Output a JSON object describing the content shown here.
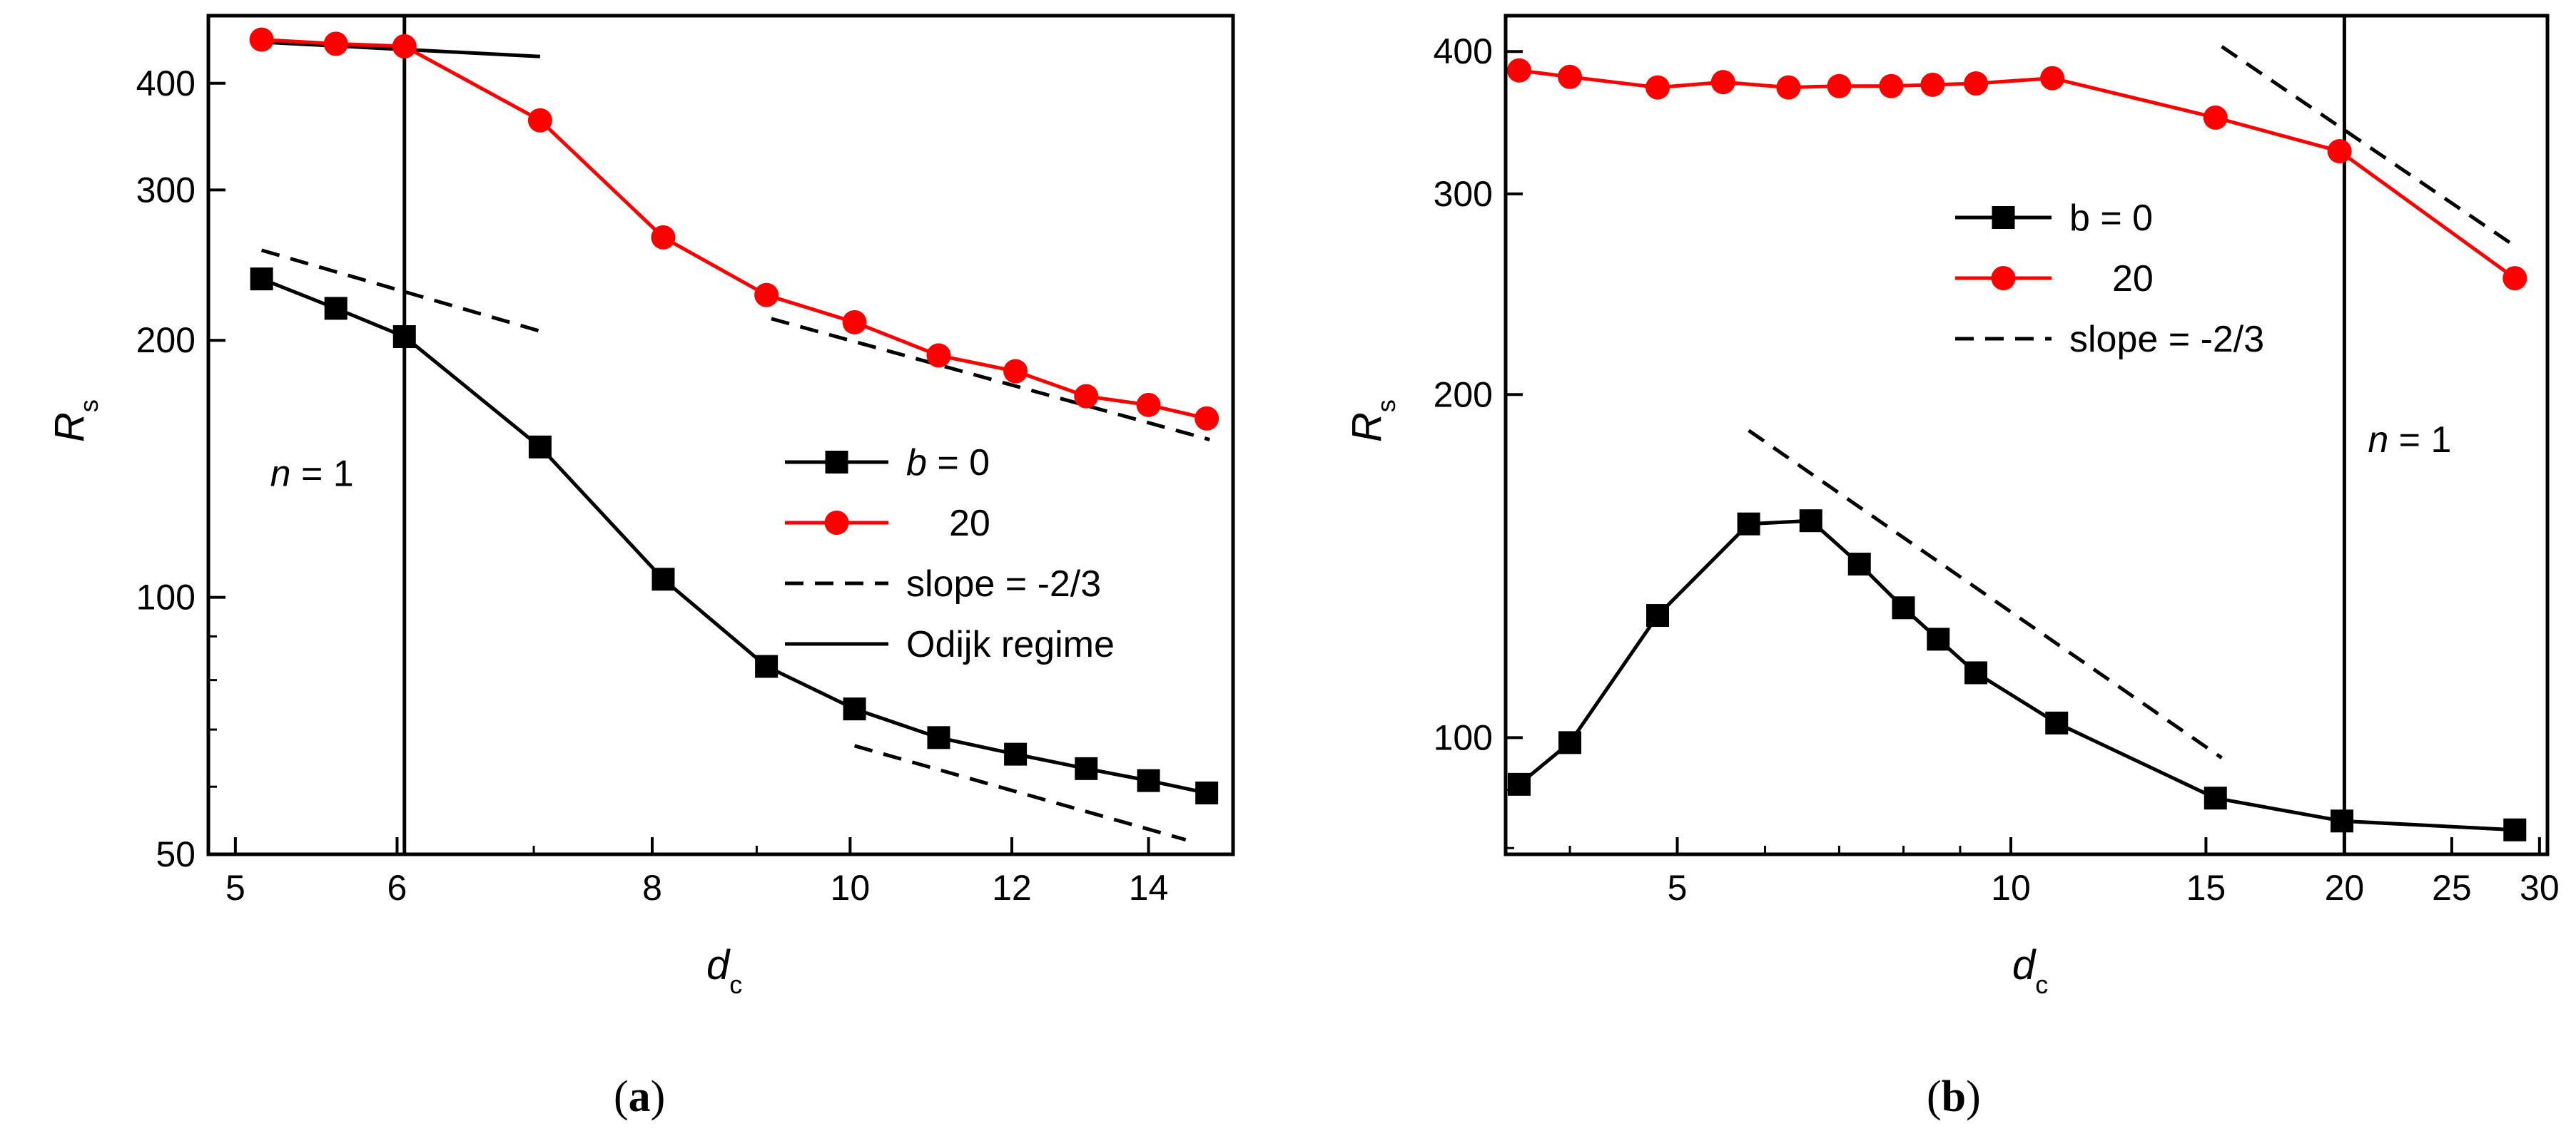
{
  "chart_data": [
    {
      "id": "a",
      "type": "line",
      "panel_label": "(a)",
      "panel_letter": "a",
      "xscale": "log",
      "yscale": "log",
      "xlim": [
        4.85,
        15.4
      ],
      "ylim": [
        50,
        480
      ],
      "xticks": [
        5,
        6,
        8,
        10,
        12,
        14
      ],
      "yticks": [
        50,
        100,
        200,
        300,
        400
      ],
      "xlabel": "d",
      "xlabel_sub": "c",
      "ylabel": "R",
      "ylabel_sub": "s",
      "annotation": {
        "italic": "n",
        "rest": " = 1",
        "x": 5.2,
        "y": 135
      },
      "series": [
        {
          "name": "b = 0",
          "color": "#000000",
          "marker": "square",
          "x": [
            5.15,
            5.6,
            6.05,
            7.05,
            8.1,
            9.1,
            10.05,
            11.05,
            12.05,
            13.05,
            14.0,
            14.95
          ],
          "y": [
            236,
            218,
            202,
            150,
            105,
            83,
            74,
            68.5,
            65.5,
            63,
            61,
            59
          ]
        },
        {
          "name": "20",
          "color": "#ff0000",
          "marker": "circle",
          "x": [
            5.15,
            5.6,
            6.05,
            7.05,
            8.1,
            9.1,
            10.05,
            11.05,
            12.05,
            13.05,
            14.0,
            14.95
          ],
          "y": [
            450,
            445,
            442,
            362,
            264,
            226,
            210,
            192,
            184,
            172,
            168,
            162
          ]
        }
      ],
      "guides": [
        {
          "kind": "slope",
          "style": "dashed",
          "x": [
            5.15,
            7.05
          ],
          "y": [
            255,
            205
          ]
        },
        {
          "kind": "slope",
          "style": "dashed",
          "x": [
            9.15,
            15.0
          ],
          "y": [
            212,
            153
          ]
        },
        {
          "kind": "slope",
          "style": "dashed",
          "x": [
            10.05,
            14.6
          ],
          "y": [
            67,
            52
          ]
        },
        {
          "kind": "odijk",
          "style": "solid",
          "x": [
            5.15,
            7.05
          ],
          "y": [
            447,
            430
          ]
        }
      ],
      "vline": {
        "x": 6.05
      },
      "legend": {
        "placement": "center-right",
        "entries": [
          {
            "prefix_italic": "b",
            "text": " = 0",
            "marker": "square",
            "color": "#000000",
            "line": "solid"
          },
          {
            "prefix_italic": "",
            "text": "20",
            "marker": "circle",
            "color": "#ff0000",
            "line": "solid"
          },
          {
            "prefix_italic": "",
            "text": "slope = -2/3",
            "marker": "none",
            "color": "#000000",
            "line": "dashed"
          },
          {
            "prefix_italic": "",
            "text": "Odijk regime",
            "marker": "none",
            "color": "#000000",
            "line": "solid"
          }
        ]
      }
    },
    {
      "id": "b",
      "type": "line",
      "panel_label": "(b)",
      "panel_letter": "b",
      "xscale": "log",
      "yscale": "log",
      "xlim": [
        3.5,
        30.5
      ],
      "ylim": [
        79,
        430
      ],
      "xticks": [
        5,
        10,
        15,
        20,
        25,
        30
      ],
      "yticks": [
        100,
        200,
        300,
        400
      ],
      "xlabel": "d",
      "xlabel_sub": "c",
      "ylabel": "R",
      "ylabel_sub": "s",
      "annotation": {
        "italic": "n",
        "rest": " = 1",
        "x": 21.0,
        "y": 178
      },
      "series": [
        {
          "name": "b = 0",
          "color": "#000000",
          "marker": "square",
          "x": [
            3.6,
            4.0,
            4.8,
            5.8,
            6.6,
            7.3,
            8.0,
            8.6,
            9.3,
            11.0,
            15.3,
            19.9,
            28.5
          ],
          "y": [
            91,
            99,
            128,
            154,
            155,
            142,
            130,
            122,
            114,
            103,
            88.5,
            84.5,
            83
          ]
        },
        {
          "name": "20",
          "color": "#ff0000",
          "marker": "circle",
          "x": [
            3.6,
            4.0,
            4.8,
            5.5,
            6.3,
            7.0,
            7.8,
            8.5,
            9.3,
            10.9,
            15.3,
            19.8,
            28.5
          ],
          "y": [
            385,
            380,
            372,
            376,
            372,
            373,
            373,
            374,
            375,
            379,
            350,
            327,
            253
          ]
        },
        {
          "name": "slope = -2/3",
          "color": "#000000",
          "marker": "none",
          "style": "dashed",
          "x": [
            5.8,
            15.5
          ],
          "y": [
            186,
            96
          ]
        }
      ],
      "guides": [
        {
          "kind": "slope",
          "style": "dashed",
          "x": [
            15.5,
            28.5
          ],
          "y": [
            404,
            270
          ]
        }
      ],
      "vline": {
        "x": 20.0
      },
      "legend": {
        "placement": "upper-center",
        "entries": [
          {
            "prefix_italic": "",
            "text": "b = 0",
            "marker": "square",
            "color": "#000000",
            "line": "solid"
          },
          {
            "prefix_italic": "",
            "text": "20",
            "marker": "circle",
            "color": "#ff0000",
            "line": "solid"
          },
          {
            "prefix_italic": "",
            "text": "slope = -2/3",
            "marker": "none",
            "color": "#000000",
            "line": "dashed"
          }
        ]
      }
    }
  ]
}
